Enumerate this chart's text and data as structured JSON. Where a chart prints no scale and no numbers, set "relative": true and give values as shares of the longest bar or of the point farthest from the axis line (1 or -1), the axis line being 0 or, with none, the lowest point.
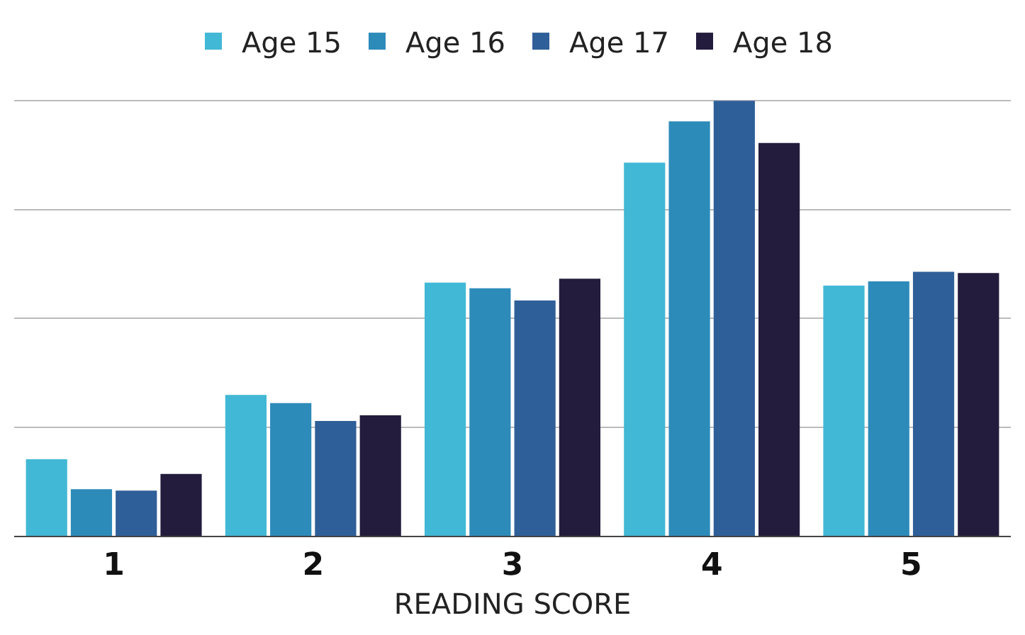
{
  "chart_data": {
    "type": "bar",
    "xlabel": "READING SCORE",
    "categories": [
      "1",
      "2",
      "3",
      "4",
      "5"
    ],
    "relative": true,
    "grid": "y",
    "legend": "top",
    "series": [
      {
        "name": "Age 15",
        "color": "#41b8d5",
        "values": [
          0.176,
          0.324,
          0.582,
          0.858,
          0.575
        ]
      },
      {
        "name": "Age 16",
        "color": "#2d8bba",
        "values": [
          0.107,
          0.305,
          0.569,
          0.953,
          0.585
        ]
      },
      {
        "name": "Age 17",
        "color": "#2f5f98",
        "values": [
          0.104,
          0.264,
          0.541,
          1,
          0.607
        ]
      },
      {
        "name": "Age 18",
        "color": "#231c3c",
        "values": [
          0.142,
          0.277,
          0.591,
          0.903,
          0.604
        ]
      }
    ]
  }
}
